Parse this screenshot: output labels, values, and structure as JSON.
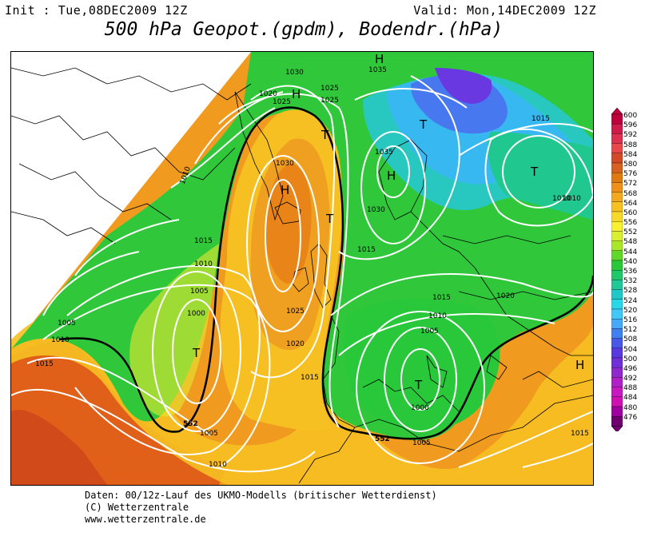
{
  "header": {
    "init": "Init : Tue,08DEC2009 12Z",
    "valid": "Valid: Mon,14DEC2009 12Z",
    "title": "500 hPa Geopot.(gpdm), Bodendr.(hPa)"
  },
  "footer": {
    "line1": "Daten: 00/12z-Lauf des UKMO-Modells (britischer Wetterdienst)",
    "line2": "(C) Wetterzentrale",
    "line3": "www.wetterzentrale.de"
  },
  "colorbar": {
    "labels": [
      "600",
      "596",
      "592",
      "588",
      "584",
      "580",
      "576",
      "572",
      "568",
      "564",
      "560",
      "556",
      "552",
      "548",
      "544",
      "540",
      "536",
      "532",
      "528",
      "524",
      "520",
      "516",
      "512",
      "508",
      "504",
      "500",
      "496",
      "492",
      "488",
      "484",
      "480",
      "476"
    ],
    "colors": [
      "#c0003a",
      "#d01a4a",
      "#e03050",
      "#e84848",
      "#d44a28",
      "#d86020",
      "#e07a10",
      "#f09018",
      "#f4a820",
      "#f8c020",
      "#f8d828",
      "#f8f030",
      "#d8f030",
      "#a8e828",
      "#60d828",
      "#28c838",
      "#20c868",
      "#20c898",
      "#20c8c8",
      "#28d8e8",
      "#40c8f8",
      "#48a8f8",
      "#4080f0",
      "#4858e8",
      "#5838e0",
      "#7030d8",
      "#9028d0",
      "#b020c8",
      "#c818c0",
      "#d010b0",
      "#a000a0",
      "#700070"
    ]
  },
  "map": {
    "pressure_labels": [
      "1030",
      "1020",
      "1025",
      "1025",
      "1035",
      "1035",
      "1030",
      "1025",
      "1015",
      "1010",
      "1010",
      "1005",
      "1000",
      "1005",
      "1010",
      "1015",
      "1020",
      "1025",
      "1030",
      "1015",
      "1010",
      "1005",
      "1000",
      "1005",
      "1010",
      "1015",
      "1020",
      "1015",
      "1015",
      "1005",
      "1010",
      "552",
      "552",
      "1015",
      "1010"
    ],
    "centers": [
      {
        "label": "H",
        "name": "high-iceland"
      },
      {
        "label": "H",
        "name": "high-greenland-coast"
      },
      {
        "label": "H",
        "name": "high-scandinavia"
      },
      {
        "label": "H",
        "name": "high-top"
      },
      {
        "label": "H",
        "name": "high-turkey"
      },
      {
        "label": "T",
        "name": "low-atlantic"
      },
      {
        "label": "T",
        "name": "low-mediterranean"
      },
      {
        "label": "T",
        "name": "low-barents"
      },
      {
        "label": "T",
        "name": "low-russia"
      },
      {
        "label": "T",
        "name": "low-norwegian-sea"
      },
      {
        "label": "T",
        "name": "low-uk"
      }
    ]
  }
}
